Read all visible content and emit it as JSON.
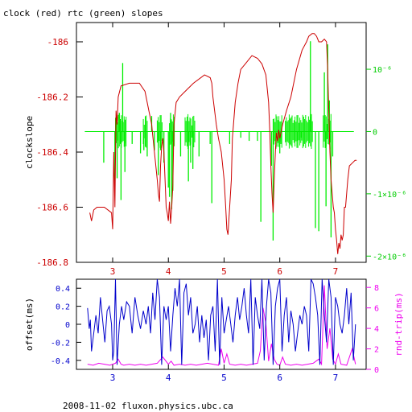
{
  "title": "clock (red) rtc (green) slopes",
  "footer": "2008-11-02 fluxon.physics.ubc.ca",
  "colors": {
    "clock": "#cc0000",
    "rtc": "#00ee00",
    "offset": "#0000cc",
    "rtt": "#ee00ee",
    "axes": "#000000",
    "left_tick_red": "#cc0000",
    "right_tick_green": "#00cc00"
  },
  "chart_data": [
    {
      "type": "line",
      "ylabel": "clockslope",
      "xlim": [
        2.35,
        7.55
      ],
      "ylim": [
        -186.8,
        -185.93
      ],
      "x_ticks": [
        3,
        4,
        5,
        6,
        7
      ],
      "y_ticks": [
        -186,
        -186.2,
        -186.4,
        -186.6,
        -186.8
      ],
      "y_tick_labels": [
        "-186",
        "-186.2",
        "-186.4",
        "-186.6",
        "-186.8"
      ],
      "y2_ticks": [
        -2e-06,
        -1e-06,
        0,
        1e-06
      ],
      "y2_tick_labels": [
        "-2×10⁻⁶",
        "-1×10⁻⁶",
        "0",
        "10⁻⁶"
      ],
      "y2lim": [
        -2.1e-06,
        1.75e-06
      ],
      "series": [
        {
          "key": "clock",
          "x": [
            2.59,
            2.62,
            2.66,
            2.72,
            2.85,
            2.98,
            3.0,
            3.02,
            3.04,
            3.06,
            3.08,
            3.1,
            3.15,
            3.3,
            3.48,
            3.58,
            3.65,
            3.7,
            3.72,
            3.74,
            3.76,
            3.78,
            3.8,
            3.82,
            3.84,
            3.86,
            3.88,
            3.9,
            3.92,
            3.94,
            3.96,
            3.98,
            4.0,
            4.02,
            4.04,
            4.06,
            4.08,
            4.1,
            4.14,
            4.2,
            4.3,
            4.45,
            4.65,
            4.75,
            4.78,
            4.8,
            4.83,
            4.86,
            4.9,
            4.95,
            5.0,
            5.03,
            5.05,
            5.07,
            5.1,
            5.13,
            5.15,
            5.2,
            5.25,
            5.3,
            5.38,
            5.5,
            5.6,
            5.68,
            5.75,
            5.8,
            5.82,
            5.84,
            5.86,
            5.88,
            5.9,
            5.92,
            5.94,
            5.96,
            5.98,
            6.0,
            6.05,
            6.12,
            6.2,
            6.3,
            6.4,
            6.48,
            6.52,
            6.58,
            6.62,
            6.66,
            6.7,
            6.75,
            6.8,
            6.84,
            6.86,
            6.88,
            6.9,
            6.92,
            6.94,
            6.96,
            6.98,
            7.0,
            7.02,
            7.04,
            7.06,
            7.08,
            7.1,
            7.12,
            7.14,
            7.16,
            7.18,
            7.2,
            7.22,
            7.25,
            7.3,
            7.35,
            7.38
          ],
          "y": [
            -186.62,
            -186.65,
            -186.61,
            -186.6,
            -186.6,
            -186.62,
            -186.68,
            -186.4,
            -186.6,
            -186.25,
            -186.3,
            -186.2,
            -186.16,
            -186.15,
            -186.15,
            -186.18,
            -186.25,
            -186.3,
            -186.34,
            -186.38,
            -186.42,
            -186.46,
            -186.5,
            -186.55,
            -186.58,
            -186.45,
            -186.38,
            -186.35,
            -186.4,
            -186.5,
            -186.6,
            -186.62,
            -186.65,
            -186.58,
            -186.66,
            -186.6,
            -186.52,
            -186.3,
            -186.22,
            -186.2,
            -186.18,
            -186.15,
            -186.12,
            -186.13,
            -186.15,
            -186.2,
            -186.25,
            -186.3,
            -186.35,
            -186.4,
            -186.5,
            -186.6,
            -186.68,
            -186.7,
            -186.6,
            -186.5,
            -186.35,
            -186.22,
            -186.15,
            -186.1,
            -186.08,
            -186.05,
            -186.06,
            -186.08,
            -186.12,
            -186.22,
            -186.32,
            -186.45,
            -186.55,
            -186.62,
            -186.5,
            -186.4,
            -186.33,
            -186.36,
            -186.32,
            -186.35,
            -186.3,
            -186.25,
            -186.2,
            -186.1,
            -186.03,
            -186.0,
            -185.98,
            -185.97,
            -185.97,
            -185.98,
            -186.0,
            -186.0,
            -185.99,
            -186.0,
            -186.1,
            -186.25,
            -186.4,
            -186.5,
            -186.55,
            -186.6,
            -186.62,
            -186.68,
            -186.72,
            -186.77,
            -186.73,
            -186.75,
            -186.7,
            -186.72,
            -186.7,
            -186.6,
            -186.6,
            -186.55,
            -186.5,
            -186.45,
            -186.44,
            -186.43,
            -186.43
          ]
        },
        {
          "key": "rtc",
          "baseline": 0,
          "x_range": [
            2.5,
            7.33
          ],
          "dense_spans": [
            [
              3.05,
              3.25
            ],
            [
              3.55,
              3.62
            ],
            [
              3.8,
              3.9
            ],
            [
              4.02,
              4.12
            ],
            [
              4.3,
              4.48
            ],
            [
              5.88,
              6.05
            ],
            [
              6.1,
              6.6
            ],
            [
              6.78,
              6.92
            ]
          ],
          "spikes": [
            [
              2.84,
              -5e-07
            ],
            [
              3.04,
              -8e-07
            ],
            [
              3.08,
              -7.5e-07
            ],
            [
              3.12,
              3e-07
            ],
            [
              3.15,
              -1.1e-06
            ],
            [
              3.18,
              1.1e-06
            ],
            [
              3.22,
              -6.5e-07
            ],
            [
              3.35,
              -2e-07
            ],
            [
              3.5,
              -3.5e-07
            ],
            [
              3.56,
              -3e-07
            ],
            [
              3.62,
              -4e-07
            ],
            [
              3.7,
              2.5e-07
            ],
            [
              3.75,
              -3e-07
            ],
            [
              3.82,
              -7e-07
            ],
            [
              3.86,
              -3e-07
            ],
            [
              3.92,
              -5e-07
            ],
            [
              4.0,
              -9e-07
            ],
            [
              4.02,
              -1.05e-06
            ],
            [
              4.04,
              3e-07
            ],
            [
              4.06,
              -1.25e-06
            ],
            [
              4.08,
              -9.5e-07
            ],
            [
              4.1,
              1e-07
            ],
            [
              4.22,
              -4e-07
            ],
            [
              4.36,
              -8e-07
            ],
            [
              4.4,
              -5e-07
            ],
            [
              4.44,
              -6e-07
            ],
            [
              4.55,
              -4e-07
            ],
            [
              4.75,
              -2e-07
            ],
            [
              4.78,
              -1.15e-06
            ],
            [
              5.1,
              -2e-07
            ],
            [
              5.3,
              -1e-07
            ],
            [
              5.45,
              -1.5e-07
            ],
            [
              5.6,
              -1.5e-07
            ],
            [
              5.66,
              -1.45e-06
            ],
            [
              5.85,
              -5.5e-07
            ],
            [
              5.88,
              -1.75e-06
            ],
            [
              5.93,
              -2e-07
            ],
            [
              6.0,
              -3.5e-07
            ],
            [
              6.02,
              -2e-07
            ],
            [
              6.32,
              -1.5e-07
            ],
            [
              6.38,
              -1e-07
            ],
            [
              6.55,
              1.45e-06
            ],
            [
              6.64,
              -1.55e-06
            ],
            [
              6.7,
              -1.6e-06
            ],
            [
              6.8,
              9.5e-07
            ],
            [
              6.83,
              -1.2e-06
            ],
            [
              6.86,
              1.4e-06
            ],
            [
              6.89,
              5e-07
            ],
            [
              6.92,
              -1.7e-06
            ],
            [
              6.95,
              -4e-07
            ]
          ]
        }
      ]
    },
    {
      "type": "line",
      "ylabel": "offset(ms)",
      "y2label": "rnd-trip(ms)",
      "xlim": [
        2.35,
        7.55
      ],
      "ylim": [
        -0.5,
        0.5
      ],
      "x_ticks": [
        3,
        4,
        5,
        6,
        7
      ],
      "y_ticks": [
        0.4,
        0.2,
        0,
        -0.2,
        -0.4
      ],
      "y_tick_labels": [
        "0.4",
        "0.2",
        "0",
        "-0.2",
        "-0.4"
      ],
      "y2_ticks": [
        8,
        6,
        4,
        2,
        0
      ],
      "y2lim": [
        0,
        8.8
      ],
      "series": [
        {
          "key": "offset",
          "x": [
            2.55,
            2.58,
            2.6,
            2.62,
            2.65,
            2.7,
            2.74,
            2.78,
            2.82,
            2.86,
            2.9,
            2.94,
            2.98,
            3.0,
            3.02,
            3.05,
            3.08,
            3.12,
            3.16,
            3.2,
            3.25,
            3.3,
            3.35,
            3.4,
            3.45,
            3.5,
            3.55,
            3.6,
            3.64,
            3.68,
            3.72,
            3.76,
            3.8,
            3.84,
            3.88,
            3.92,
            3.96,
            4.0,
            4.04,
            4.08,
            4.12,
            4.16,
            4.2,
            4.24,
            4.28,
            4.32,
            4.36,
            4.4,
            4.44,
            4.48,
            4.52,
            4.56,
            4.6,
            4.64,
            4.68,
            4.72,
            4.76,
            4.8,
            4.84,
            4.88,
            4.92,
            4.96,
            5.0,
            5.04,
            5.08,
            5.12,
            5.16,
            5.2,
            5.24,
            5.28,
            5.32,
            5.36,
            5.4,
            5.44,
            5.48,
            5.52,
            5.56,
            5.6,
            5.64,
            5.68,
            5.72,
            5.76,
            5.8,
            5.84,
            5.88,
            5.92,
            5.96,
            6.0,
            6.04,
            6.08,
            6.12,
            6.16,
            6.2,
            6.24,
            6.28,
            6.32,
            6.36,
            6.4,
            6.44,
            6.48,
            6.52,
            6.56,
            6.6,
            6.64,
            6.68,
            6.72,
            6.76,
            6.8,
            6.84,
            6.88,
            6.92,
            6.96,
            7.0,
            7.04,
            7.08,
            7.12,
            7.16,
            7.2,
            7.24,
            7.28,
            7.32,
            7.36
          ],
          "y": [
            0.18,
            -0.05,
            0.05,
            -0.3,
            -0.15,
            0.1,
            -0.1,
            0.3,
            0.05,
            -0.2,
            0.15,
            0.2,
            0.0,
            -0.4,
            -0.3,
            0.5,
            -0.45,
            0.0,
            0.2,
            0.05,
            0.25,
            0.2,
            -0.1,
            0.3,
            0.1,
            -0.05,
            0.15,
            0.0,
            0.2,
            -0.1,
            0.35,
            0.05,
            0.5,
            0.3,
            -0.45,
            0.2,
            0.05,
            0.2,
            -0.3,
            0.1,
            0.4,
            0.2,
            0.5,
            -0.45,
            0.35,
            0.45,
            0.1,
            0.3,
            -0.1,
            0.0,
            0.2,
            -0.2,
            0.1,
            -0.15,
            0.05,
            -0.4,
            0.1,
            0.2,
            -0.3,
            0.5,
            -0.45,
            0.3,
            -0.1,
            0.05,
            0.2,
            0.0,
            -0.2,
            0.1,
            0.3,
            0.05,
            0.2,
            0.4,
            0.1,
            -0.1,
            0.5,
            -0.45,
            0.3,
            0.1,
            -0.05,
            0.5,
            -0.4,
            0.2,
            0.5,
            0.35,
            -0.45,
            0.2,
            0.4,
            0.5,
            -0.3,
            0.1,
            0.3,
            -0.2,
            0.15,
            0.0,
            -0.3,
            -0.1,
            0.1,
            0.0,
            0.2,
            0.1,
            -0.3,
            0.5,
            0.45,
            0.3,
            0.1,
            -0.45,
            0.5,
            0.1,
            -0.2,
            0.5,
            0.3,
            -0.45,
            0.3,
            0.2,
            0.0,
            -0.1,
            0.1,
            0.4,
            0.0,
            0.35,
            -0.4,
            0.0
          ]
        },
        {
          "key": "rtt",
          "x": [
            2.55,
            2.65,
            2.75,
            2.85,
            2.95,
            3.05,
            3.1,
            3.15,
            3.2,
            3.3,
            3.4,
            3.5,
            3.6,
            3.7,
            3.8,
            3.9,
            4.0,
            4.05,
            4.1,
            4.2,
            4.3,
            4.4,
            4.5,
            4.6,
            4.7,
            4.8,
            4.9,
            4.95,
            5.0,
            5.05,
            5.1,
            5.2,
            5.3,
            5.4,
            5.5,
            5.6,
            5.65,
            5.7,
            5.75,
            5.8,
            5.85,
            5.9,
            5.95,
            6.0,
            6.05,
            6.1,
            6.2,
            6.3,
            6.4,
            6.5,
            6.6,
            6.7,
            6.75,
            6.8,
            6.85,
            6.9,
            6.95,
            7.0,
            7.05,
            7.1,
            7.2,
            7.3,
            7.36
          ],
          "y": [
            0.5,
            0.4,
            0.6,
            0.5,
            0.4,
            0.6,
            1.0,
            0.5,
            0.4,
            0.5,
            0.4,
            0.5,
            0.4,
            0.5,
            0.6,
            1.2,
            0.5,
            0.8,
            0.4,
            0.5,
            0.4,
            0.5,
            0.4,
            0.5,
            0.6,
            0.5,
            0.4,
            2.0,
            0.6,
            1.5,
            0.5,
            0.4,
            0.5,
            0.4,
            0.5,
            0.6,
            1.8,
            6.0,
            4.5,
            0.8,
            2.5,
            1.0,
            0.5,
            0.4,
            1.2,
            0.5,
            0.4,
            0.5,
            0.4,
            0.5,
            0.6,
            1.0,
            0.5,
            8.2,
            2.0,
            4.0,
            1.0,
            0.5,
            1.5,
            0.5,
            0.4,
            2.0,
            0.5
          ]
        }
      ]
    }
  ]
}
